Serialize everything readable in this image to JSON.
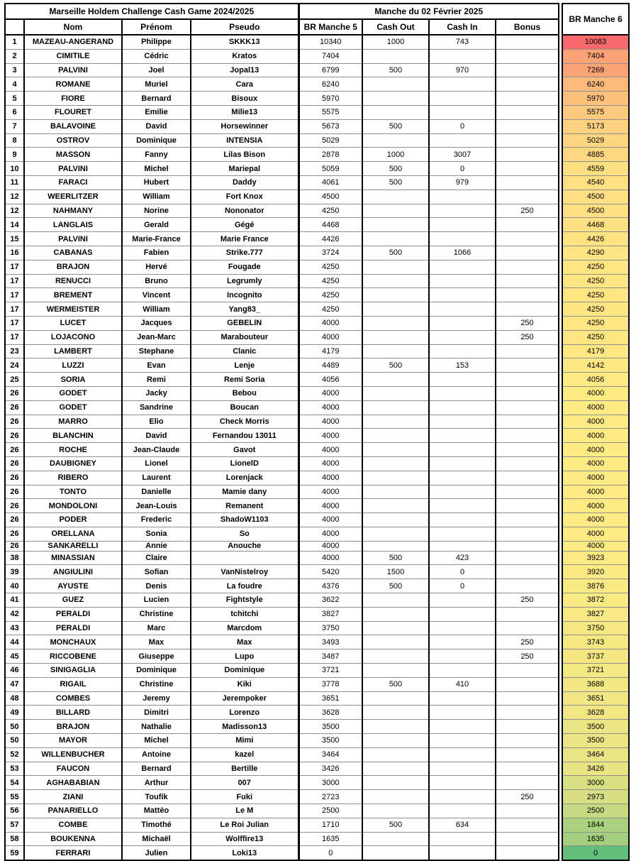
{
  "header": {
    "title_left": "Marseille Holdem Challenge Cash Game 2024/2025",
    "title_right": "Manche du 02 Février 2025",
    "columns": {
      "nom": "Nom",
      "prenom": "Prénom",
      "pseudo": "Pseudo",
      "br5": "BR Manche 5",
      "cash_out": "Cash Out",
      "cash_in": "Cash In",
      "bonus": "Bonus",
      "br6": "BR Manche 6"
    }
  },
  "colors": {
    "scale_low_green": "#63BE7B",
    "scale_mid_yellow": "#FFEB84",
    "scale_high_red": "#F8696B",
    "grid_line": "#8f8f8f",
    "border": "#000000"
  },
  "rows": [
    {
      "rank": 1,
      "nom": "MAZEAU-ANGERAND",
      "prenom": "Philippe",
      "pseudo": "SKKK13",
      "br5": 10340,
      "cash_out": 1000,
      "cash_in": 743,
      "bonus": null,
      "br6": 10083
    },
    {
      "rank": 2,
      "nom": "CIMITILE",
      "prenom": "Cédric",
      "pseudo": "Kratos",
      "br5": 7404,
      "cash_out": null,
      "cash_in": null,
      "bonus": null,
      "br6": 7404
    },
    {
      "rank": 3,
      "nom": "PALVINI",
      "prenom": "Joel",
      "pseudo": "Jopal13",
      "br5": 6799,
      "cash_out": 500,
      "cash_in": 970,
      "bonus": null,
      "br6": 7269
    },
    {
      "rank": 4,
      "nom": "ROMANE",
      "prenom": "Muriel",
      "pseudo": "Cara",
      "br5": 6240,
      "cash_out": null,
      "cash_in": null,
      "bonus": null,
      "br6": 6240
    },
    {
      "rank": 5,
      "nom": "FIORE",
      "prenom": "Bernard",
      "pseudo": "Bisoux",
      "br5": 5970,
      "cash_out": null,
      "cash_in": null,
      "bonus": null,
      "br6": 5970
    },
    {
      "rank": 6,
      "nom": "FLOURET",
      "prenom": "Emilie",
      "pseudo": "Milie13",
      "br5": 5575,
      "cash_out": null,
      "cash_in": null,
      "bonus": null,
      "br6": 5575
    },
    {
      "rank": 7,
      "nom": "BALAVOINE",
      "prenom": "David",
      "pseudo": "Horsewinner",
      "br5": 5673,
      "cash_out": 500,
      "cash_in": 0,
      "bonus": null,
      "br6": 5173
    },
    {
      "rank": 8,
      "nom": "OSTROV",
      "prenom": "Dominique",
      "pseudo": "INTENSIA",
      "br5": 5029,
      "cash_out": null,
      "cash_in": null,
      "bonus": null,
      "br6": 5029
    },
    {
      "rank": 9,
      "nom": "MASSON",
      "prenom": "Fanny",
      "pseudo": "Lilas Bison",
      "br5": 2878,
      "cash_out": 1000,
      "cash_in": 3007,
      "bonus": null,
      "br6": 4885
    },
    {
      "rank": 10,
      "nom": "PALVINI",
      "prenom": "Michel",
      "pseudo": "Mariepal",
      "br5": 5059,
      "cash_out": 500,
      "cash_in": 0,
      "bonus": null,
      "br6": 4559
    },
    {
      "rank": 11,
      "nom": "FARACI",
      "prenom": "Hubert",
      "pseudo": "Daddy",
      "br5": 4061,
      "cash_out": 500,
      "cash_in": 979,
      "bonus": null,
      "br6": 4540
    },
    {
      "rank": 12,
      "nom": "WEERLITZER",
      "prenom": "William",
      "pseudo": "Fort Knox",
      "br5": 4500,
      "cash_out": null,
      "cash_in": null,
      "bonus": null,
      "br6": 4500
    },
    {
      "rank": 12,
      "nom": "NAHMANY",
      "prenom": "Norine",
      "pseudo": "Nononator",
      "br5": 4250,
      "cash_out": null,
      "cash_in": null,
      "bonus": 250,
      "br6": 4500
    },
    {
      "rank": 14,
      "nom": "LANGLAIS",
      "prenom": "Gerald",
      "pseudo": "Gégé",
      "br5": 4468,
      "cash_out": null,
      "cash_in": null,
      "bonus": null,
      "br6": 4468
    },
    {
      "rank": 15,
      "nom": "PALVINI",
      "prenom": "Marie-France",
      "pseudo": "Marie France",
      "br5": 4426,
      "cash_out": null,
      "cash_in": null,
      "bonus": null,
      "br6": 4426
    },
    {
      "rank": 16,
      "nom": "CABANAS",
      "prenom": "Fabien",
      "pseudo": "Strike.777",
      "br5": 3724,
      "cash_out": 500,
      "cash_in": 1066,
      "bonus": null,
      "br6": 4290
    },
    {
      "rank": 17,
      "nom": "BRAJON",
      "prenom": "Hervé",
      "pseudo": "Fougade",
      "br5": 4250,
      "cash_out": null,
      "cash_in": null,
      "bonus": null,
      "br6": 4250
    },
    {
      "rank": 17,
      "nom": "RENUCCI",
      "prenom": "Bruno",
      "pseudo": "Legrumly",
      "br5": 4250,
      "cash_out": null,
      "cash_in": null,
      "bonus": null,
      "br6": 4250
    },
    {
      "rank": 17,
      "nom": "BREMENT",
      "prenom": "Vincent",
      "pseudo": "Incognito",
      "br5": 4250,
      "cash_out": null,
      "cash_in": null,
      "bonus": null,
      "br6": 4250
    },
    {
      "rank": 17,
      "nom": "WERMEISTER",
      "prenom": "William",
      "pseudo": "Yang83_",
      "br5": 4250,
      "cash_out": null,
      "cash_in": null,
      "bonus": null,
      "br6": 4250
    },
    {
      "rank": 17,
      "nom": "LUCET",
      "prenom": "Jacques",
      "pseudo": "GEBELIN",
      "br5": 4000,
      "cash_out": null,
      "cash_in": null,
      "bonus": 250,
      "br6": 4250
    },
    {
      "rank": 17,
      "nom": "LOJACONO",
      "prenom": "Jean-Marc",
      "pseudo": "Marabouteur",
      "br5": 4000,
      "cash_out": null,
      "cash_in": null,
      "bonus": 250,
      "br6": 4250
    },
    {
      "rank": 23,
      "nom": "LAMBERT",
      "prenom": "Stephane",
      "pseudo": "Clanic",
      "br5": 4179,
      "cash_out": null,
      "cash_in": null,
      "bonus": null,
      "br6": 4179
    },
    {
      "rank": 24,
      "nom": "LUZZI",
      "prenom": "Evan",
      "pseudo": "Lenje",
      "br5": 4489,
      "cash_out": 500,
      "cash_in": 153,
      "bonus": null,
      "br6": 4142
    },
    {
      "rank": 25,
      "nom": "SORIA",
      "prenom": "Remi",
      "pseudo": "Remi Soria",
      "br5": 4056,
      "cash_out": null,
      "cash_in": null,
      "bonus": null,
      "br6": 4056
    },
    {
      "rank": 26,
      "nom": "GODET",
      "prenom": "Jacky",
      "pseudo": "Bebou",
      "br5": 4000,
      "cash_out": null,
      "cash_in": null,
      "bonus": null,
      "br6": 4000
    },
    {
      "rank": 26,
      "nom": "GODET",
      "prenom": "Sandrine",
      "pseudo": "Boucan",
      "br5": 4000,
      "cash_out": null,
      "cash_in": null,
      "bonus": null,
      "br6": 4000
    },
    {
      "rank": 26,
      "nom": "MARRO",
      "prenom": "Elio",
      "pseudo": "Check Morris",
      "br5": 4000,
      "cash_out": null,
      "cash_in": null,
      "bonus": null,
      "br6": 4000
    },
    {
      "rank": 26,
      "nom": "BLANCHIN",
      "prenom": "David",
      "pseudo": "Fernandou 13011",
      "br5": 4000,
      "cash_out": null,
      "cash_in": null,
      "bonus": null,
      "br6": 4000
    },
    {
      "rank": 26,
      "nom": "ROCHE",
      "prenom": "Jean-Claude",
      "pseudo": "Gavot",
      "br5": 4000,
      "cash_out": null,
      "cash_in": null,
      "bonus": null,
      "br6": 4000
    },
    {
      "rank": 26,
      "nom": "DAUBIGNEY",
      "prenom": "Lionel",
      "pseudo": "LionelD",
      "br5": 4000,
      "cash_out": null,
      "cash_in": null,
      "bonus": null,
      "br6": 4000
    },
    {
      "rank": 26,
      "nom": "RIBERO",
      "prenom": "Laurent",
      "pseudo": "Lorenjack",
      "br5": 4000,
      "cash_out": null,
      "cash_in": null,
      "bonus": null,
      "br6": 4000
    },
    {
      "rank": 26,
      "nom": "TONTO",
      "prenom": "Danielle",
      "pseudo": "Mamie dany",
      "br5": 4000,
      "cash_out": null,
      "cash_in": null,
      "bonus": null,
      "br6": 4000
    },
    {
      "rank": 26,
      "nom": "MONDOLONI",
      "prenom": "Jean-Louis",
      "pseudo": "Remanent",
      "br5": 4000,
      "cash_out": null,
      "cash_in": null,
      "bonus": null,
      "br6": 4000
    },
    {
      "rank": 26,
      "nom": "PODER",
      "prenom": "Frederic",
      "pseudo": "ShadoW1103",
      "br5": 4000,
      "cash_out": null,
      "cash_in": null,
      "bonus": null,
      "br6": 4000
    },
    {
      "rank": 26,
      "nom": "ORELLANA",
      "prenom": "Sonia",
      "pseudo": "So",
      "br5": 4000,
      "cash_out": null,
      "cash_in": null,
      "bonus": null,
      "br6": 4000
    },
    {
      "rank": 26,
      "nom": "SANKARELLI",
      "prenom": "Annie",
      "pseudo": "Anouche",
      "br5": 4000,
      "cash_out": null,
      "cash_in": null,
      "bonus": null,
      "br6": 4000,
      "compact": true
    },
    {
      "rank": 38,
      "nom": "MINASSIAN",
      "prenom": "Claire",
      "pseudo": "",
      "br5": 4000,
      "cash_out": 500,
      "cash_in": 423,
      "bonus": null,
      "br6": 3923
    },
    {
      "rank": 39,
      "nom": "ANGIULINI",
      "prenom": "Sofian",
      "pseudo": "VanNistelroy",
      "br5": 5420,
      "cash_out": 1500,
      "cash_in": 0,
      "bonus": null,
      "br6": 3920
    },
    {
      "rank": 40,
      "nom": "AYUSTE",
      "prenom": "Denis",
      "pseudo": "La foudre",
      "br5": 4376,
      "cash_out": 500,
      "cash_in": 0,
      "bonus": null,
      "br6": 3876
    },
    {
      "rank": 41,
      "nom": "GUEZ",
      "prenom": "Lucien",
      "pseudo": "Fightstyle",
      "br5": 3622,
      "cash_out": null,
      "cash_in": null,
      "bonus": 250,
      "br6": 3872
    },
    {
      "rank": 42,
      "nom": "PERALDI",
      "prenom": "Christine",
      "pseudo": "tchitchi",
      "br5": 3827,
      "cash_out": null,
      "cash_in": null,
      "bonus": null,
      "br6": 3827
    },
    {
      "rank": 43,
      "nom": "PERALDI",
      "prenom": "Marc",
      "pseudo": "Marcdom",
      "br5": 3750,
      "cash_out": null,
      "cash_in": null,
      "bonus": null,
      "br6": 3750
    },
    {
      "rank": 44,
      "nom": "MONCHAUX",
      "prenom": "Max",
      "pseudo": "Max",
      "br5": 3493,
      "cash_out": null,
      "cash_in": null,
      "bonus": 250,
      "br6": 3743
    },
    {
      "rank": 45,
      "nom": "RICCOBENE",
      "prenom": "Giuseppe",
      "pseudo": "Lupo",
      "br5": 3487,
      "cash_out": null,
      "cash_in": null,
      "bonus": 250,
      "br6": 3737
    },
    {
      "rank": 46,
      "nom": "SINIGAGLIA",
      "prenom": "Dominique",
      "pseudo": "Dominique",
      "br5": 3721,
      "cash_out": null,
      "cash_in": null,
      "bonus": null,
      "br6": 3721
    },
    {
      "rank": 47,
      "nom": "RIGAIL",
      "prenom": "Christine",
      "pseudo": "Kiki",
      "br5": 3778,
      "cash_out": 500,
      "cash_in": 410,
      "bonus": null,
      "br6": 3688
    },
    {
      "rank": 48,
      "nom": "COMBES",
      "prenom": "Jeremy",
      "pseudo": "Jerempoker",
      "br5": 3651,
      "cash_out": null,
      "cash_in": null,
      "bonus": null,
      "br6": 3651
    },
    {
      "rank": 49,
      "nom": "BILLARD",
      "prenom": "Dimitri",
      "pseudo": "Lorenzo",
      "br5": 3628,
      "cash_out": null,
      "cash_in": null,
      "bonus": null,
      "br6": 3628
    },
    {
      "rank": 50,
      "nom": "BRAJON",
      "prenom": "Nathalie",
      "pseudo": "Madisson13",
      "br5": 3500,
      "cash_out": null,
      "cash_in": null,
      "bonus": null,
      "br6": 3500
    },
    {
      "rank": 50,
      "nom": "MAYOR",
      "prenom": "Michel",
      "pseudo": "Mimi",
      "br5": 3500,
      "cash_out": null,
      "cash_in": null,
      "bonus": null,
      "br6": 3500
    },
    {
      "rank": 52,
      "nom": "WILLENBUCHER",
      "prenom": "Antoine",
      "pseudo": "kazel",
      "br5": 3464,
      "cash_out": null,
      "cash_in": null,
      "bonus": null,
      "br6": 3464
    },
    {
      "rank": 53,
      "nom": "FAUCON",
      "prenom": "Bernard",
      "pseudo": "Bertille",
      "br5": 3426,
      "cash_out": null,
      "cash_in": null,
      "bonus": null,
      "br6": 3426
    },
    {
      "rank": 54,
      "nom": "AGHABABIAN",
      "prenom": "Arthur",
      "pseudo": "007",
      "br5": 3000,
      "cash_out": null,
      "cash_in": null,
      "bonus": null,
      "br6": 3000
    },
    {
      "rank": 55,
      "nom": "ZIANI",
      "prenom": "Toufik",
      "pseudo": "Fuki",
      "br5": 2723,
      "cash_out": null,
      "cash_in": null,
      "bonus": 250,
      "br6": 2973
    },
    {
      "rank": 56,
      "nom": "PANARIELLO",
      "prenom": "Mattèo",
      "pseudo": "Le M",
      "br5": 2500,
      "cash_out": null,
      "cash_in": null,
      "bonus": null,
      "br6": 2500
    },
    {
      "rank": 57,
      "nom": "COMBE",
      "prenom": "Timothé",
      "pseudo": "Le Roi Julian",
      "br5": 1710,
      "cash_out": 500,
      "cash_in": 634,
      "bonus": null,
      "br6": 1844
    },
    {
      "rank": 58,
      "nom": "BOUKENNA",
      "prenom": "Michaël",
      "pseudo": "Wolffire13",
      "br5": 1635,
      "cash_out": null,
      "cash_in": null,
      "bonus": null,
      "br6": 1635
    },
    {
      "rank": 59,
      "nom": "FERRARI",
      "prenom": "Julien",
      "pseudo": "Loki13",
      "br5": 0,
      "cash_out": null,
      "cash_in": null,
      "bonus": null,
      "br6": 0
    }
  ]
}
